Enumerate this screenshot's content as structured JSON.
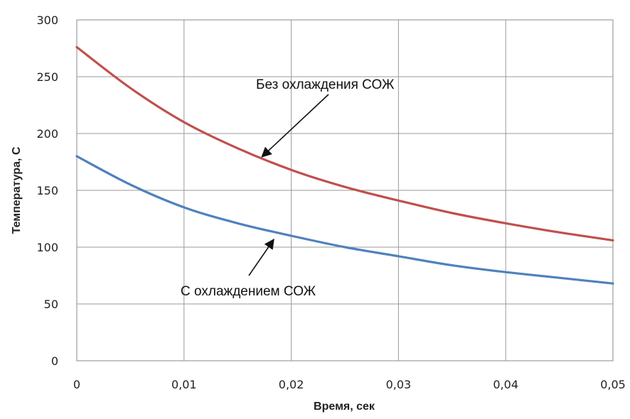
{
  "chart_data": {
    "type": "line",
    "xlabel": "Время, сек",
    "ylabel": "Температура, С",
    "xlim": [
      0,
      0.05
    ],
    "ylim": [
      0,
      300
    ],
    "x_ticks": [
      0,
      0.01,
      0.02,
      0.03,
      0.04,
      0.05
    ],
    "x_tick_labels": [
      "0",
      "0,01",
      "0,02",
      "0,03",
      "0,04",
      "0,05"
    ],
    "y_ticks": [
      0,
      50,
      100,
      150,
      200,
      250,
      300
    ],
    "y_tick_labels": [
      "0",
      "50",
      "100",
      "150",
      "200",
      "250",
      "300"
    ],
    "grid": true,
    "x": [
      0,
      0.005,
      0.01,
      0.015,
      0.02,
      0.025,
      0.03,
      0.035,
      0.04,
      0.045,
      0.05
    ],
    "series": [
      {
        "color": "#c0504d",
        "values": [
          276,
          240,
          210,
          187,
          168,
          153,
          141,
          130,
          121,
          113,
          106
        ]
      },
      {
        "color": "#4f81bd",
        "values": [
          180,
          155,
          135,
          121,
          110,
          100,
          92,
          84,
          78,
          73,
          68
        ]
      }
    ],
    "annotations": [
      {
        "text": "Без охлаждения СОЖ",
        "series": 0,
        "x": 0.017,
        "y": 177
      },
      {
        "text": "С охлаждением СОЖ",
        "series": 1,
        "x": 0.0185,
        "y": 113
      }
    ]
  }
}
